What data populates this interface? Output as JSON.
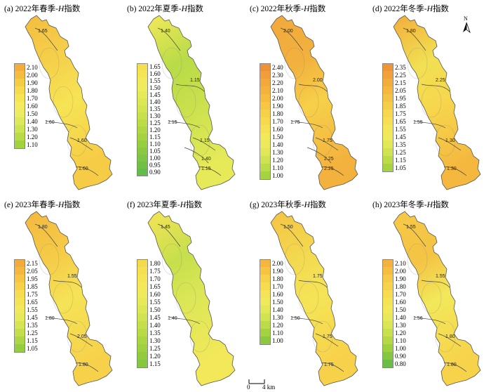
{
  "panels": [
    {
      "id": "a",
      "prefix": "(a) 2022年春季-",
      "italic": "H",
      "suffix": "指数",
      "legend": [
        "2.10",
        "2.00",
        "1.90",
        "1.80",
        "1.70",
        "1.60",
        "1.50",
        "1.40",
        "1.30",
        "1.20",
        "1.10"
      ],
      "colors": [
        "#f2ad3c",
        "#f4bd3f",
        "#f6cb45",
        "#f7d94c",
        "#f6e454",
        "#f3ea5c",
        "#ecec62",
        "#dde95a",
        "#cce452",
        "#b8dc48",
        "#a2d33f"
      ],
      "contours": [
        "1.65",
        "1.60",
        "1.60",
        "1.60"
      ],
      "fill": "#f5d24c"
    },
    {
      "id": "b",
      "prefix": "(b) 2022年夏季-",
      "italic": "H",
      "suffix": "指数",
      "legend": [
        "1.65",
        "1.60",
        "1.55",
        "1.50",
        "1.45",
        "1.40",
        "1.35",
        "1.30",
        "1.25",
        "1.20",
        "1.15",
        "1.10",
        "1.05",
        "1.00",
        "0.95",
        "0.90"
      ],
      "colors": [
        "#f4df4e",
        "#f5e554",
        "#f3e95a",
        "#eeeb5c",
        "#e6ea59",
        "#dde756",
        "#d3e451",
        "#c8e04c",
        "#bcdc47",
        "#b0d743",
        "#a4d33f",
        "#97ce3e",
        "#8ac93f",
        "#7dc542",
        "#70c046",
        "#63bb4a"
      ],
      "contours": [
        "1.40",
        "1.15",
        "1.15",
        "1.15",
        "1.15",
        "1.40"
      ],
      "fill": "#b8db47"
    },
    {
      "id": "c",
      "prefix": "(c) 2022年秋季-",
      "italic": "H",
      "suffix": "指数",
      "legend": [
        "2.40",
        "2.30",
        "2.20",
        "2.10",
        "2.00",
        "1.90",
        "1.80",
        "1.70",
        "1.60",
        "1.50",
        "1.40",
        "1.30",
        "1.20",
        "1.10",
        "1.00"
      ],
      "colors": [
        "#ee9138",
        "#f09d3a",
        "#f2a83c",
        "#f3b23e",
        "#f5bc40",
        "#f6c644",
        "#f7d049",
        "#f7d94e",
        "#f6e154",
        "#f3e75a",
        "#ede95c",
        "#e0e758",
        "#cfe251",
        "#bcdb48",
        "#a6d340"
      ],
      "contours": [
        "2.00",
        "1.75",
        "1.75",
        "2.25",
        "2.00",
        "2.25"
      ],
      "fill": "#f2b23e"
    },
    {
      "id": "d",
      "prefix": "(d) 2022年冬季-",
      "italic": "H",
      "suffix": "指数",
      "legend": [
        "2.35",
        "2.25",
        "2.15",
        "2.05",
        "1.95",
        "1.85",
        "1.75",
        "1.65",
        "1.55",
        "1.45",
        "1.35",
        "1.25",
        "1.15",
        "1.05"
      ],
      "colors": [
        "#ee9538",
        "#f0a13a",
        "#f2ad3c",
        "#f4b83f",
        "#f5c343",
        "#f6cd48",
        "#f7d74d",
        "#f6df53",
        "#f4e659",
        "#efea5c",
        "#e2e858",
        "#d0e351",
        "#bcdb48",
        "#a6d340"
      ],
      "contours": [
        "1.80",
        "1.55",
        "1.30",
        "1.30",
        "2.25"
      ],
      "fill": "#f1e052"
    },
    {
      "id": "e",
      "prefix": "(e) 2023年春季-",
      "italic": "H",
      "suffix": "指数",
      "legend": [
        "2.15",
        "2.05",
        "1.95",
        "1.85",
        "1.75",
        "1.65",
        "1.55",
        "1.45",
        "1.35",
        "1.25",
        "1.15",
        "1.05"
      ],
      "colors": [
        "#f2ab3c",
        "#f4b83f",
        "#f6c544",
        "#f7d14a",
        "#f7db50",
        "#f5e356",
        "#f1e95b",
        "#e6e959",
        "#d6e553",
        "#c2de4b",
        "#acd643",
        "#95cd3f"
      ],
      "contours": [
        "1.80",
        "1.80",
        "2.05",
        "1.80",
        "1.55"
      ],
      "fill": "#f5cd48"
    },
    {
      "id": "f",
      "prefix": "(f) 2023年夏季-",
      "italic": "H",
      "suffix": "指数",
      "legend": [
        "1.80",
        "1.75",
        "1.70",
        "1.65",
        "1.60",
        "1.55",
        "1.50",
        "1.45",
        "1.40",
        "1.35",
        "1.30",
        "1.25",
        "1.20",
        "1.15"
      ],
      "colors": [
        "#f5d94c",
        "#f6df51",
        "#f5e456",
        "#f3e85a",
        "#eeea5c",
        "#e6ea5a",
        "#dce756",
        "#d1e351",
        "#c5df4c",
        "#b9da47",
        "#acd543",
        "#9fd040",
        "#92cb3f",
        "#85c740"
      ],
      "contours": [
        "1.45",
        "1.40"
      ],
      "fill": "#c6df4c"
    },
    {
      "id": "g",
      "prefix": "(g) 2023年秋季-",
      "italic": "H",
      "suffix": "指数",
      "legend": [
        "2.00",
        "1.90",
        "1.80",
        "1.70",
        "1.60",
        "1.50",
        "1.40",
        "1.30",
        "1.20",
        "1.10",
        "1.00"
      ],
      "colors": [
        "#f3b63e",
        "#f5c443",
        "#f7d149",
        "#f7dc50",
        "#f5e457",
        "#f0e95b",
        "#e2e858",
        "#d0e351",
        "#bbdb48",
        "#a4d240",
        "#8cc93e"
      ],
      "contours": [
        "1.50",
        "1.50",
        "1.75",
        "1.75",
        "1.75"
      ],
      "fill": "#f3da50"
    },
    {
      "id": "h",
      "prefix": "(h) 2023年冬季-",
      "italic": "H",
      "suffix": "指数",
      "legend": [
        "2.10",
        "2.00",
        "1.90",
        "1.80",
        "1.70",
        "1.60",
        "1.50",
        "1.40",
        "1.30",
        "1.20",
        "1.10",
        "1.00",
        "0.90",
        "0.80"
      ],
      "colors": [
        "#f3b23e",
        "#f5be41",
        "#f6c946",
        "#f7d34b",
        "#f7dc50",
        "#f5e356",
        "#f2e85a",
        "#e8e95a",
        "#d9e655",
        "#c8e04d",
        "#b4d945",
        "#9ed140",
        "#86c741",
        "#6cbd48"
      ],
      "contours": [
        "1.55",
        "1.56",
        "1.80",
        "1.80",
        "1.55"
      ],
      "fill": "#f4c444"
    }
  ],
  "scalebar": {
    "left": "0",
    "right": "4 km"
  },
  "north": {
    "label": "N"
  }
}
